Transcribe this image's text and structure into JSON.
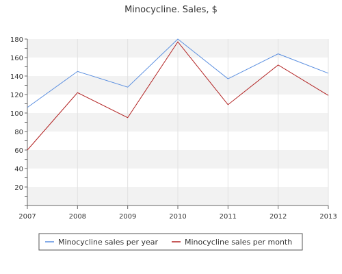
{
  "chart_data": {
    "type": "line",
    "title": "Minocycline. Sales, $",
    "xlabel": "",
    "ylabel": "",
    "categories": [
      "2007",
      "2008",
      "2009",
      "2010",
      "2011",
      "2012",
      "2013"
    ],
    "y_ticks": [
      "20",
      "40",
      "60",
      "80",
      "100",
      "120",
      "140",
      "160",
      "180"
    ],
    "ylim": [
      0,
      180
    ],
    "grid": "horizontal bands and vertical gridlines",
    "legend_position": "bottom",
    "series": [
      {
        "name": "Minocycline sales per year",
        "color": "#5b8fe0",
        "values": [
          106,
          145,
          128,
          180,
          137,
          164,
          143
        ]
      },
      {
        "name": "Minocycline sales per month",
        "color": "#b22222",
        "values": [
          60,
          122,
          95,
          177,
          109,
          152,
          119
        ]
      }
    ]
  }
}
